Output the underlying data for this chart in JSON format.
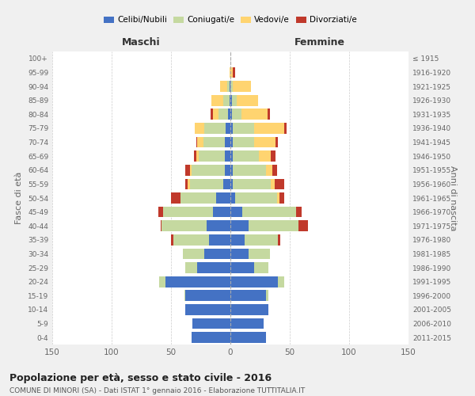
{
  "age_groups": [
    "0-4",
    "5-9",
    "10-14",
    "15-19",
    "20-24",
    "25-29",
    "30-34",
    "35-39",
    "40-44",
    "45-49",
    "50-54",
    "55-59",
    "60-64",
    "65-69",
    "70-74",
    "75-79",
    "80-84",
    "85-89",
    "90-94",
    "95-99",
    "100+"
  ],
  "birth_years": [
    "2011-2015",
    "2006-2010",
    "2001-2005",
    "1996-2000",
    "1991-1995",
    "1986-1990",
    "1981-1985",
    "1976-1980",
    "1971-1975",
    "1966-1970",
    "1961-1965",
    "1956-1960",
    "1951-1955",
    "1946-1950",
    "1941-1945",
    "1936-1940",
    "1931-1935",
    "1926-1930",
    "1921-1925",
    "1916-1920",
    "≤ 1915"
  ],
  "colors": {
    "celibi": "#4472C4",
    "coniugati": "#C5D9A0",
    "vedovi": "#FFD470",
    "divorziati": "#C0392B"
  },
  "maschi": {
    "celibi": [
      33,
      32,
      38,
      38,
      55,
      28,
      22,
      18,
      20,
      15,
      12,
      6,
      5,
      5,
      5,
      4,
      2,
      1,
      1,
      0,
      0
    ],
    "coniugati": [
      0,
      0,
      0,
      1,
      5,
      10,
      18,
      30,
      38,
      42,
      30,
      28,
      28,
      22,
      18,
      18,
      8,
      5,
      2,
      0,
      0
    ],
    "vedovi": [
      0,
      0,
      0,
      0,
      0,
      0,
      0,
      0,
      0,
      0,
      0,
      2,
      1,
      2,
      5,
      8,
      5,
      10,
      6,
      1,
      0
    ],
    "divorziati": [
      0,
      0,
      0,
      0,
      0,
      0,
      0,
      2,
      1,
      4,
      8,
      2,
      4,
      2,
      1,
      0,
      2,
      0,
      0,
      0,
      0
    ]
  },
  "femmine": {
    "celibi": [
      30,
      28,
      32,
      30,
      40,
      20,
      15,
      12,
      15,
      10,
      4,
      2,
      2,
      2,
      2,
      2,
      1,
      1,
      0,
      0,
      0
    ],
    "coniugati": [
      0,
      0,
      0,
      2,
      5,
      12,
      18,
      28,
      42,
      45,
      35,
      32,
      28,
      22,
      18,
      18,
      8,
      4,
      2,
      0,
      0
    ],
    "vedovi": [
      0,
      0,
      0,
      0,
      0,
      0,
      0,
      0,
      0,
      0,
      2,
      3,
      5,
      10,
      18,
      25,
      22,
      18,
      15,
      2,
      0
    ],
    "divorziati": [
      0,
      0,
      0,
      0,
      0,
      0,
      0,
      2,
      8,
      5,
      4,
      8,
      4,
      4,
      2,
      2,
      2,
      0,
      0,
      2,
      0
    ]
  },
  "xlim": 150,
  "title_main": "Popolazione per età, sesso e stato civile - 2016",
  "title_sub": "COMUNE DI MINORI (SA) - Dati ISTAT 1° gennaio 2016 - Elaborazione TUTTITALIA.IT",
  "ylabel_left": "Fasce di età",
  "ylabel_right": "Anni di nascita",
  "xlabel_left": "Maschi",
  "xlabel_right": "Femmine",
  "legend_labels": [
    "Celibi/Nubili",
    "Coniugati/e",
    "Vedovi/e",
    "Divorziati/e"
  ],
  "background_color": "#f0f0f0",
  "plot_bg": "#ffffff"
}
